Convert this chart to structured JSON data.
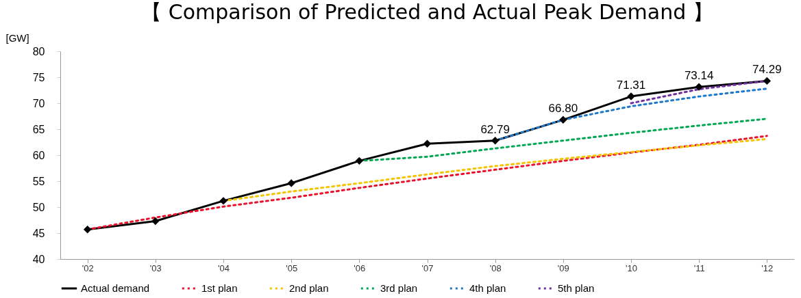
{
  "chart_data": {
    "type": "line",
    "title": "【 Comparison of Predicted and Actual Peak Demand 】",
    "ylabel": "[GW]",
    "categories": [
      "'02",
      "'03",
      "'04",
      "'05",
      "'06",
      "'07",
      "'08",
      "'09",
      "'10",
      "'11",
      "'12"
    ],
    "ylim": [
      40,
      80
    ],
    "yticks": [
      40,
      45,
      50,
      55,
      60,
      65,
      70,
      75,
      80
    ],
    "grid": false,
    "legend": "bottom",
    "series": [
      {
        "name": "Actual demand",
        "color": "#000000",
        "marker": "diamond",
        "line_style": "solid",
        "values": [
          45.7,
          47.3,
          51.2,
          54.6,
          58.9,
          62.2,
          62.79,
          66.8,
          71.31,
          73.14,
          74.29
        ],
        "value_labels": [
          null,
          null,
          null,
          null,
          null,
          null,
          "62.79",
          "66.80",
          "71.31",
          "73.14",
          "74.29"
        ]
      },
      {
        "name": "1st plan",
        "color": "#e8102a",
        "marker": "none",
        "line_style": "dotted",
        "values": [
          45.7,
          48.0,
          50.1,
          51.8,
          53.7,
          55.5,
          57.2,
          58.9,
          60.5,
          62.0,
          63.7
        ]
      },
      {
        "name": "2nd plan",
        "color": "#f5c400",
        "marker": "none",
        "line_style": "dotted",
        "values": [
          null,
          null,
          51.2,
          53.0,
          54.6,
          56.3,
          57.9,
          59.3,
          60.6,
          61.9,
          63.1
        ]
      },
      {
        "name": "3rd plan",
        "color": "#00a651",
        "marker": "none",
        "line_style": "dotted",
        "values": [
          null,
          null,
          null,
          null,
          58.9,
          59.7,
          61.3,
          62.8,
          64.3,
          65.7,
          67.0
        ]
      },
      {
        "name": "4th plan",
        "color": "#1f78c8",
        "marker": "none",
        "line_style": "dotted",
        "values": [
          null,
          null,
          null,
          null,
          null,
          null,
          62.8,
          66.8,
          69.4,
          71.3,
          72.8
        ]
      },
      {
        "name": "5th plan",
        "color": "#7030a0",
        "marker": "none",
        "line_style": "dotted",
        "values": [
          null,
          null,
          null,
          null,
          null,
          null,
          null,
          null,
          70.0,
          72.7,
          74.3
        ]
      }
    ]
  }
}
